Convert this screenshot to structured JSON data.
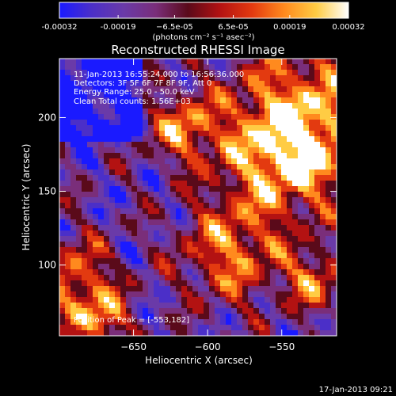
{
  "chart_data": {
    "type": "heatmap",
    "title": "Reconstructed RHESSI Image",
    "xlabel": "Heliocentric X (arcsec)",
    "ylabel": "Heliocentric Y (arcsec)",
    "xlim": [
      -700,
      -513
    ],
    "ylim": [
      52,
      240
    ],
    "xticks": [
      -650,
      -600,
      -550
    ],
    "yticks": [
      100,
      150,
      200
    ],
    "colorbar": {
      "range": [
        -0.00032,
        0.00032
      ],
      "tick_values": [
        -0.00032,
        -0.00019,
        -6.5e-05,
        6.5e-05,
        0.00019,
        0.00032
      ],
      "tick_labels": [
        "-0.00032",
        "-0.00019",
        "−6.5e-05",
        "6.5e-05",
        "0.00019",
        "0.00032"
      ],
      "unit": "(photons cm⁻² s⁻¹ asec⁻²)"
    },
    "info_lines": [
      "11-Jan-2013 16:55:24.000 to 16:56:36.000",
      "Detectors: 3F 5F 6F 7F 8F 9F, Att 0",
      "Energy Range: 25.0 - 50.0 keV",
      "Clean     Total counts: 1.56E+03"
    ],
    "peak_label": "Position of Peak = [-553,182]",
    "peak": [
      -553,
      182
    ],
    "grid": false,
    "colormap": [
      "#1a1aff",
      "#4b2fc8",
      "#6a3aa8",
      "#7a2e7a",
      "#5a0a1a",
      "#b31212",
      "#e33a10",
      "#ff8a1e",
      "#ffcc44",
      "#ffffff"
    ]
  },
  "footer": {
    "timestamp": "17-Jan-2013 09:21"
  }
}
